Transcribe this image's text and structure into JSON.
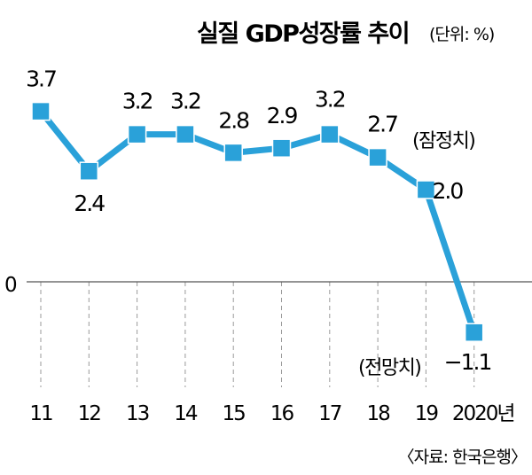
{
  "chart_data": {
    "type": "line",
    "title": "실질 GDP성장률 추이",
    "unit": "(단위: %)",
    "categories": [
      "11",
      "12",
      "13",
      "14",
      "15",
      "16",
      "17",
      "18",
      "19",
      "2020년"
    ],
    "values": [
      3.7,
      2.4,
      3.2,
      3.2,
      2.8,
      2.9,
      3.2,
      2.7,
      2.0,
      -1.1
    ],
    "value_labels": [
      "3.7",
      "2.4",
      "3.2",
      "3.2",
      "2.8",
      "2.9",
      "3.2",
      "2.7",
      "2.0",
      "−1.1"
    ],
    "annotations": {
      "estimate_2019": "(잠정치)",
      "forecast_2020": "(전망치)"
    },
    "zero_label": "0",
    "source": "〈자료: 한국은행〉",
    "line_color": "#2aa1d9",
    "marker_color": "#2aa1d9",
    "grid": "dashed vertical"
  }
}
